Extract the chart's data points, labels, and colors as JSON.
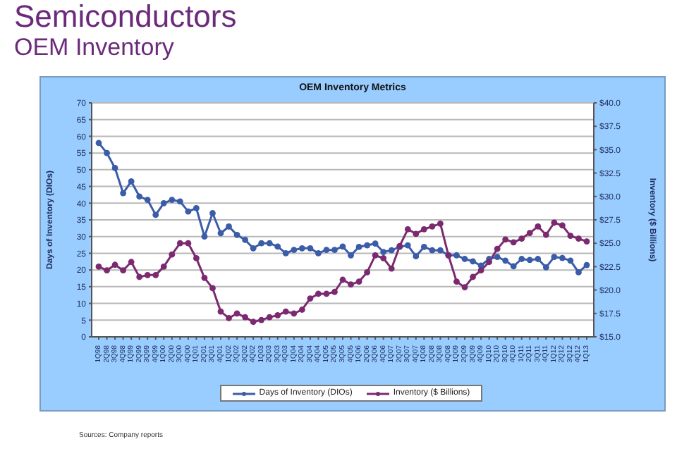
{
  "chart_data": {
    "type": "line",
    "title": "Semiconductors",
    "subtitle": "OEM Inventory",
    "annotations": [
      "OEM Inventory Metrics",
      "Sources: Company reports"
    ],
    "ylabel": "Days of Inventory (DIOs)",
    "y2label": "Inventory ($ Billions)",
    "categories": [
      "1Q98",
      "2Q98",
      "3Q98",
      "4Q98",
      "1Q99",
      "2Q99",
      "3Q99",
      "4Q99",
      "1Q00",
      "2Q00",
      "3Q00",
      "4Q00",
      "1Q01",
      "2Q01",
      "3Q01",
      "4Q01",
      "1Q02",
      "2Q02",
      "3Q02",
      "4Q02",
      "1Q03",
      "2Q03",
      "3Q03",
      "4Q03",
      "1Q04",
      "2Q04",
      "3Q04",
      "4Q04",
      "1Q05",
      "2Q05",
      "3Q05",
      "4Q05",
      "1Q06",
      "2Q06",
      "3Q06",
      "4Q06",
      "1Q07",
      "2Q07",
      "3Q07",
      "4Q07",
      "1Q08",
      "2Q08",
      "3Q08",
      "4Q08",
      "1Q09",
      "2Q09",
      "3Q09",
      "4Q09",
      "1Q10",
      "2Q10",
      "3Q10",
      "4Q10",
      "1Q11",
      "2Q11",
      "3Q11",
      "4Q11",
      "1Q12",
      "2Q12",
      "3Q12",
      "4Q12",
      "1Q13"
    ],
    "series": [
      {
        "name": "Days of Inventory (DIOs)",
        "color": "#3b5ca8",
        "values": [
          58,
          55,
          50.5,
          43,
          46.5,
          42,
          41,
          36.5,
          40,
          41,
          40.5,
          37.5,
          38.5,
          30,
          37,
          31,
          33,
          30.5,
          29,
          26.5,
          28,
          28,
          27,
          25,
          26,
          26.5,
          26.5,
          25,
          26,
          26,
          27,
          24.4,
          26.9,
          27.4,
          27.9,
          25.4,
          25.9,
          26.9,
          27.4,
          24.1,
          26.9,
          25.9,
          25.9,
          24.4,
          24.4,
          23.3,
          22.6,
          21.3,
          23.3,
          23.9,
          22.8,
          21.1,
          23.3,
          23,
          23.3,
          20.8,
          23.9,
          23.6,
          22.8,
          19.3,
          21.5
        ]
      },
      {
        "name": "Inventory ($ Billions)",
        "color": "#7b2a70",
        "axis": "y2",
        "values": [
          22.5,
          22.1,
          22.7,
          22.1,
          23,
          21.4,
          21.6,
          21.6,
          22.5,
          23.8,
          25,
          25,
          23.4,
          21.3,
          20.2,
          17.7,
          17,
          17.5,
          17.1,
          16.6,
          16.8,
          17.1,
          17.3,
          17.7,
          17.5,
          17.9,
          19.1,
          19.6,
          19.6,
          19.8,
          21.1,
          20.6,
          20.9,
          21.9,
          23.7,
          23.4,
          22.3,
          24.7,
          26.5,
          26,
          26.5,
          26.8,
          27.1,
          23.7,
          20.9,
          20.3,
          21.4,
          22.1,
          23,
          24.4,
          25.4,
          25.1,
          25.5,
          26.1,
          26.8,
          25.9,
          27.2,
          26.9,
          25.8,
          25.5,
          25.2
        ]
      }
    ],
    "ylim": [
      0,
      70
    ],
    "yticks": [
      0,
      5,
      10,
      15,
      20,
      25,
      30,
      35,
      40,
      45,
      50,
      55,
      60,
      65,
      70
    ],
    "y2lim": [
      15,
      40
    ],
    "y2ticks": [
      {
        "value": 15,
        "label": "$15.0"
      },
      {
        "value": 17.5,
        "label": "$17.5"
      },
      {
        "value": 20,
        "label": "$20.0"
      },
      {
        "value": 22.5,
        "label": "$22.5"
      },
      {
        "value": 25,
        "label": "$25.0"
      },
      {
        "value": 27.5,
        "label": "$27.5"
      },
      {
        "value": 30,
        "label": "$30.0"
      },
      {
        "value": 32.5,
        "label": "$32.5"
      },
      {
        "value": 35,
        "label": "$35.0"
      },
      {
        "value": 37.5,
        "label": "$37.5"
      },
      {
        "value": 40,
        "label": "$40.0"
      }
    ],
    "grid": "y",
    "legend": "bottom",
    "marker": "circle",
    "line_style": "solid"
  }
}
